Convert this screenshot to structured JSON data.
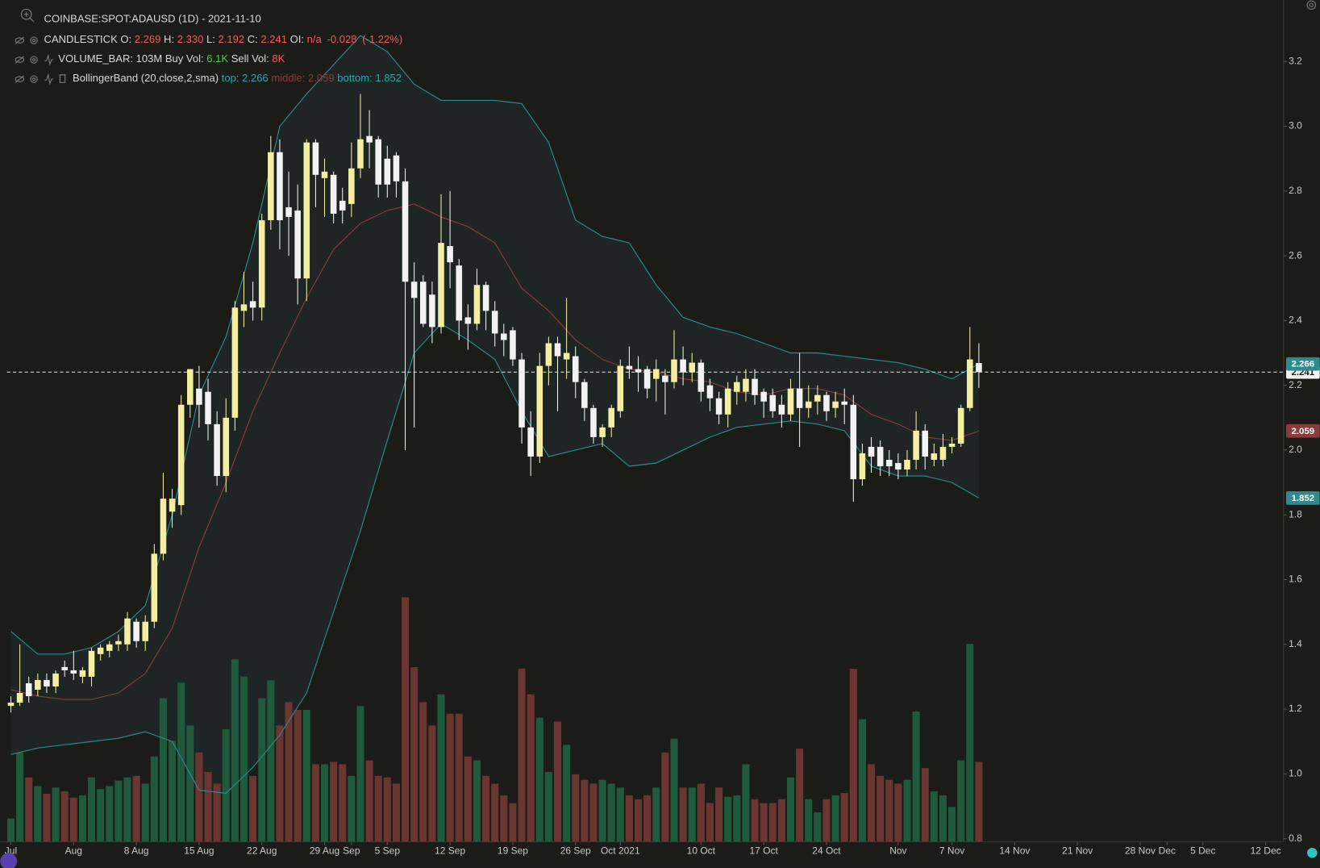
{
  "chart_data": {
    "type": "candlestick",
    "header": {
      "symbol": "COINBASE:SPOT:ADAUSD (1D) - 2021-11-10",
      "candlestick": {
        "name": "CANDLESTICK",
        "o": "O:",
        "h": "H:",
        "high_label": "2.330",
        "l": "L:",
        "c": "C:",
        "oi": "OI:",
        "oi_value": "n/a",
        "change": "-0.028",
        "change_pct": "(-1.22%)"
      },
      "volume": {
        "name": "VOLUME_BAR:",
        "value": "103M",
        "buy": "Buy Vol:",
        "buy_value": "6.1K",
        "sell": "Sell Vol:",
        "sell_value": "8K"
      },
      "bollinger": {
        "name": "BollingerBand (20,close,2,sma)",
        "top": "top:",
        "middle": "middle:",
        "bottom": "bottom:"
      }
    },
    "x": [
      "2021-07-25",
      "2021-07-26",
      "2021-07-27",
      "2021-07-28",
      "2021-07-29",
      "2021-07-30",
      "2021-07-31",
      "2021-08-01",
      "2021-08-02",
      "2021-08-03",
      "2021-08-04",
      "2021-08-05",
      "2021-08-06",
      "2021-08-07",
      "2021-08-08",
      "2021-08-09",
      "2021-08-10",
      "2021-08-11",
      "2021-08-12",
      "2021-08-13",
      "2021-08-14",
      "2021-08-15",
      "2021-08-16",
      "2021-08-17",
      "2021-08-18",
      "2021-08-19",
      "2021-08-20",
      "2021-08-21",
      "2021-08-22",
      "2021-08-23",
      "2021-08-24",
      "2021-08-25",
      "2021-08-26",
      "2021-08-27",
      "2021-08-28",
      "2021-08-29",
      "2021-08-30",
      "2021-08-31",
      "2021-09-01",
      "2021-09-02",
      "2021-09-03",
      "2021-09-04",
      "2021-09-05",
      "2021-09-06",
      "2021-09-07",
      "2021-09-08",
      "2021-09-09",
      "2021-09-10",
      "2021-09-11",
      "2021-09-12",
      "2021-09-13",
      "2021-09-14",
      "2021-09-15",
      "2021-09-16",
      "2021-09-17",
      "2021-09-18",
      "2021-09-19",
      "2021-09-20",
      "2021-09-21",
      "2021-09-22",
      "2021-09-23",
      "2021-09-24",
      "2021-09-25",
      "2021-09-26",
      "2021-09-27",
      "2021-09-28",
      "2021-09-29",
      "2021-09-30",
      "2021-10-01",
      "2021-10-02",
      "2021-10-03",
      "2021-10-04",
      "2021-10-05",
      "2021-10-06",
      "2021-10-07",
      "2021-10-08",
      "2021-10-09",
      "2021-10-10",
      "2021-10-11",
      "2021-10-12",
      "2021-10-13",
      "2021-10-14",
      "2021-10-15",
      "2021-10-16",
      "2021-10-17",
      "2021-10-18",
      "2021-10-19",
      "2021-10-20",
      "2021-10-21",
      "2021-10-22",
      "2021-10-23",
      "2021-10-24",
      "2021-10-25",
      "2021-10-26",
      "2021-10-27",
      "2021-10-28",
      "2021-10-29",
      "2021-10-30",
      "2021-10-31",
      "2021-11-01",
      "2021-11-02",
      "2021-11-03",
      "2021-11-04",
      "2021-11-05",
      "2021-11-06",
      "2021-11-07",
      "2021-11-08",
      "2021-11-09",
      "2021-11-10"
    ],
    "open": [
      1.21,
      1.22,
      1.28,
      1.26,
      1.29,
      1.27,
      1.33,
      1.32,
      1.3,
      1.3,
      1.37,
      1.38,
      1.4,
      1.4,
      1.47,
      1.41,
      1.47,
      1.68,
      1.81,
      1.83,
      2.14,
      2.19,
      2.18,
      2.08,
      1.92,
      2.1,
      2.43,
      2.46,
      2.44,
      2.71,
      2.92,
      2.75,
      2.74,
      2.53,
      2.95,
      2.84,
      2.85,
      2.77,
      2.76,
      2.87,
      2.97,
      2.96,
      2.9,
      2.91,
      2.83,
      2.52,
      2.52,
      2.48,
      2.38,
      2.63,
      2.57,
      2.41,
      2.39,
      2.51,
      2.43,
      2.36,
      2.37,
      2.28,
      2.07,
      1.98,
      2.26,
      2.33,
      2.28,
      2.29,
      2.21,
      2.13,
      2.04,
      2.07,
      2.12,
      2.26,
      2.25,
      2.25,
      2.22,
      2.23,
      2.21,
      2.28,
      2.24,
      2.27,
      2.2,
      2.16,
      2.11,
      2.18,
      2.18,
      2.22,
      2.18,
      2.17,
      2.14,
      2.11,
      2.19,
      2.13,
      2.15,
      2.17,
      2.13,
      2.15,
      2.14,
      1.91,
      2.01,
      2.01,
      1.97,
      1.96,
      1.94,
      1.97,
      2.06,
      1.97,
      1.97,
      2.01,
      2.02,
      2.13,
      2.269
    ],
    "high": [
      1.24,
      1.4,
      1.3,
      1.31,
      1.31,
      1.32,
      1.35,
      1.38,
      1.33,
      1.39,
      1.4,
      1.41,
      1.43,
      1.5,
      1.48,
      1.49,
      1.71,
      1.93,
      1.88,
      2.17,
      2.25,
      2.26,
      2.22,
      2.12,
      2.16,
      2.46,
      2.55,
      2.52,
      2.73,
      2.97,
      2.96,
      2.86,
      2.82,
      2.96,
      2.96,
      2.9,
      2.86,
      2.81,
      2.95,
      3.1,
      3.05,
      2.97,
      2.94,
      2.92,
      2.87,
      2.58,
      2.54,
      2.52,
      2.79,
      2.8,
      2.59,
      2.45,
      2.56,
      2.52,
      2.46,
      2.39,
      2.38,
      2.3,
      2.12,
      2.3,
      2.35,
      2.35,
      2.47,
      2.32,
      2.22,
      2.14,
      2.08,
      2.14,
      2.28,
      2.32,
      2.29,
      2.26,
      2.28,
      2.25,
      2.37,
      2.32,
      2.3,
      2.28,
      2.22,
      2.18,
      2.21,
      2.23,
      2.25,
      2.25,
      2.19,
      2.19,
      2.17,
      2.22,
      2.3,
      2.2,
      2.2,
      2.18,
      2.18,
      2.19,
      2.17,
      2.02,
      2.04,
      2.03,
      2.0,
      1.99,
      2.0,
      2.12,
      2.08,
      2.02,
      2.05,
      2.04,
      2.14,
      2.38,
      2.33
    ],
    "low": [
      1.19,
      1.21,
      1.22,
      1.24,
      1.25,
      1.25,
      1.3,
      1.29,
      1.28,
      1.27,
      1.35,
      1.36,
      1.38,
      1.38,
      1.39,
      1.38,
      1.45,
      1.66,
      1.76,
      1.8,
      2.1,
      2.07,
      2.03,
      1.89,
      1.87,
      2.06,
      2.38,
      2.4,
      2.4,
      2.68,
      2.62,
      2.6,
      2.45,
      2.46,
      2.75,
      2.72,
      2.7,
      2.7,
      2.72,
      2.84,
      2.87,
      2.78,
      2.78,
      2.78,
      2.0,
      2.07,
      2.38,
      2.33,
      2.36,
      2.5,
      2.34,
      2.31,
      2.37,
      2.37,
      2.32,
      2.29,
      2.26,
      2.02,
      1.92,
      1.96,
      2.2,
      2.12,
      2.22,
      2.16,
      2.09,
      2.02,
      2.01,
      2.04,
      2.1,
      2.22,
      2.18,
      2.16,
      2.15,
      2.11,
      2.19,
      2.2,
      2.21,
      2.15,
      2.12,
      2.08,
      2.07,
      2.14,
      2.15,
      2.14,
      2.1,
      2.1,
      2.07,
      2.09,
      2.01,
      2.1,
      2.11,
      2.09,
      2.1,
      2.08,
      1.84,
      1.89,
      1.93,
      1.92,
      1.92,
      1.91,
      1.92,
      1.94,
      1.94,
      1.95,
      1.95,
      1.99,
      2.01,
      2.12,
      2.192
    ],
    "close": [
      1.22,
      1.25,
      1.24,
      1.29,
      1.27,
      1.31,
      1.32,
      1.31,
      1.32,
      1.38,
      1.39,
      1.4,
      1.41,
      1.48,
      1.41,
      1.47,
      1.68,
      1.85,
      1.85,
      2.14,
      2.25,
      2.14,
      2.08,
      1.92,
      2.1,
      2.44,
      2.45,
      2.44,
      2.71,
      2.92,
      2.71,
      2.72,
      2.53,
      2.95,
      2.85,
      2.86,
      2.73,
      2.74,
      2.87,
      2.96,
      2.95,
      2.82,
      2.82,
      2.83,
      2.52,
      2.47,
      2.39,
      2.38,
      2.64,
      2.58,
      2.4,
      2.39,
      2.51,
      2.43,
      2.36,
      2.34,
      2.28,
      2.07,
      1.98,
      2.26,
      2.33,
      2.29,
      2.3,
      2.21,
      2.13,
      2.04,
      2.07,
      2.13,
      2.26,
      2.25,
      2.24,
      2.19,
      2.25,
      2.21,
      2.28,
      2.24,
      2.27,
      2.18,
      2.16,
      2.11,
      2.19,
      2.21,
      2.22,
      2.17,
      2.15,
      2.12,
      2.11,
      2.19,
      2.13,
      2.15,
      2.17,
      2.12,
      2.15,
      2.14,
      1.91,
      1.99,
      1.98,
      1.95,
      1.95,
      1.94,
      1.97,
      2.06,
      1.98,
      1.99,
      2.01,
      2.02,
      2.13,
      2.28,
      2.241
    ],
    "volume": [
      30,
      115,
      83,
      72,
      62,
      70,
      65,
      57,
      60,
      83,
      68,
      72,
      79,
      83,
      85,
      75,
      110,
      185,
      130,
      205,
      150,
      115,
      90,
      75,
      145,
      235,
      213,
      85,
      185,
      208,
      150,
      180,
      170,
      170,
      100,
      100,
      103,
      100,
      85,
      175,
      105,
      85,
      83,
      75,
      315,
      225,
      180,
      150,
      190,
      165,
      165,
      110,
      105,
      85,
      75,
      60,
      50,
      223,
      190,
      160,
      90,
      155,
      125,
      87,
      80,
      75,
      80,
      75,
      70,
      60,
      55,
      60,
      70,
      115,
      133,
      70,
      70,
      75,
      50,
      70,
      58,
      60,
      100,
      55,
      50,
      50,
      55,
      83,
      120,
      55,
      38,
      55,
      60,
      63,
      223,
      158,
      100,
      85,
      80,
      75,
      80,
      168,
      95,
      65,
      60,
      45,
      105,
      255,
      103
    ],
    "bands": {
      "x": [
        "2021-07-25",
        "2021-07-28",
        "2021-07-31",
        "2021-08-03",
        "2021-08-06",
        "2021-08-09",
        "2021-08-12",
        "2021-08-15",
        "2021-08-18",
        "2021-08-21",
        "2021-08-24",
        "2021-08-27",
        "2021-08-30",
        "2021-09-02",
        "2021-09-05",
        "2021-09-08",
        "2021-09-11",
        "2021-09-14",
        "2021-09-17",
        "2021-09-20",
        "2021-09-23",
        "2021-09-26",
        "2021-09-29",
        "2021-10-02",
        "2021-10-05",
        "2021-10-08",
        "2021-10-11",
        "2021-10-14",
        "2021-10-17",
        "2021-10-20",
        "2021-10-23",
        "2021-10-26",
        "2021-10-29",
        "2021-11-01",
        "2021-11-04",
        "2021-11-07",
        "2021-11-10"
      ],
      "top": [
        1.44,
        1.37,
        1.37,
        1.39,
        1.44,
        1.52,
        1.8,
        2.17,
        2.35,
        2.64,
        3.0,
        3.1,
        3.19,
        3.28,
        3.23,
        3.13,
        3.08,
        3.08,
        3.08,
        3.07,
        2.95,
        2.71,
        2.66,
        2.64,
        2.51,
        2.41,
        2.38,
        2.36,
        2.33,
        2.3,
        2.3,
        2.29,
        2.28,
        2.27,
        2.25,
        2.22,
        2.266
      ],
      "middle": [
        1.26,
        1.24,
        1.23,
        1.23,
        1.25,
        1.31,
        1.45,
        1.7,
        1.9,
        2.12,
        2.3,
        2.47,
        2.62,
        2.7,
        2.74,
        2.76,
        2.72,
        2.69,
        2.64,
        2.5,
        2.43,
        2.34,
        2.28,
        2.25,
        2.24,
        2.22,
        2.21,
        2.18,
        2.17,
        2.19,
        2.19,
        2.17,
        2.11,
        2.08,
        2.04,
        2.03,
        2.059
      ],
      "bottom": [
        1.06,
        1.08,
        1.09,
        1.1,
        1.11,
        1.13,
        1.1,
        0.95,
        0.94,
        1.02,
        1.12,
        1.25,
        1.5,
        1.75,
        2.03,
        2.3,
        2.39,
        2.34,
        2.28,
        2.12,
        1.98,
        2.0,
        2.02,
        1.95,
        1.96,
        2.0,
        2.04,
        2.07,
        2.08,
        2.09,
        2.08,
        2.06,
        1.95,
        1.92,
        1.92,
        1.9,
        1.852
      ],
      "band_color": "#2b8c8f",
      "middle_color": "#8c3b3b",
      "fill_color": "#1e2524"
    },
    "up_color": "#f3eea0",
    "down_color": "#f2f2f2",
    "volume_up_color": "#1e5a3b",
    "volume_down_color": "#6b3631",
    "xlim": [
      "2021-07-24",
      "2021-12-14"
    ],
    "xticks": [
      {
        "value": "2021-07-25",
        "label": "Jul"
      },
      {
        "value": "2021-08-01",
        "label": "Aug"
      },
      {
        "value": "2021-08-08",
        "label": "8 Aug"
      },
      {
        "value": "2021-08-15",
        "label": "15 Aug"
      },
      {
        "value": "2021-08-22",
        "label": "22 Aug"
      },
      {
        "value": "2021-08-29",
        "label": "29 Aug"
      },
      {
        "value": "2021-09-01",
        "label": "Sep"
      },
      {
        "value": "2021-09-05",
        "label": "5 Sep"
      },
      {
        "value": "2021-09-12",
        "label": "12 Sep"
      },
      {
        "value": "2021-09-19",
        "label": "19 Sep"
      },
      {
        "value": "2021-09-26",
        "label": "26 Sep"
      },
      {
        "value": "2021-10-01",
        "label": "Oct 2021"
      },
      {
        "value": "2021-10-10",
        "label": "10 Oct"
      },
      {
        "value": "2021-10-17",
        "label": "17 Oct"
      },
      {
        "value": "2021-10-24",
        "label": "24 Oct"
      },
      {
        "value": "2021-11-01",
        "label": "Nov"
      },
      {
        "value": "2021-11-07",
        "label": "7 Nov"
      },
      {
        "value": "2021-11-14",
        "label": "14 Nov"
      },
      {
        "value": "2021-11-21",
        "label": "21 Nov"
      },
      {
        "value": "2021-11-28",
        "label": "28 Nov"
      },
      {
        "value": "2021-12-01",
        "label": "Dec"
      },
      {
        "value": "2021-12-05",
        "label": "5 Dec"
      },
      {
        "value": "2021-12-12",
        "label": "12 Dec"
      }
    ],
    "ylim": [
      0.79,
      3.39
    ],
    "yticks": [
      0.8,
      {
        "value": 1,
        "label": "1.0"
      },
      1.2,
      1.4,
      1.6,
      1.8,
      {
        "value": 2,
        "label": "2.0"
      },
      2.2,
      2.4,
      2.6,
      2.8,
      {
        "value": 3,
        "label": "3.0"
      },
      3.2
    ],
    "vlim": [
      0,
      1084
    ]
  }
}
